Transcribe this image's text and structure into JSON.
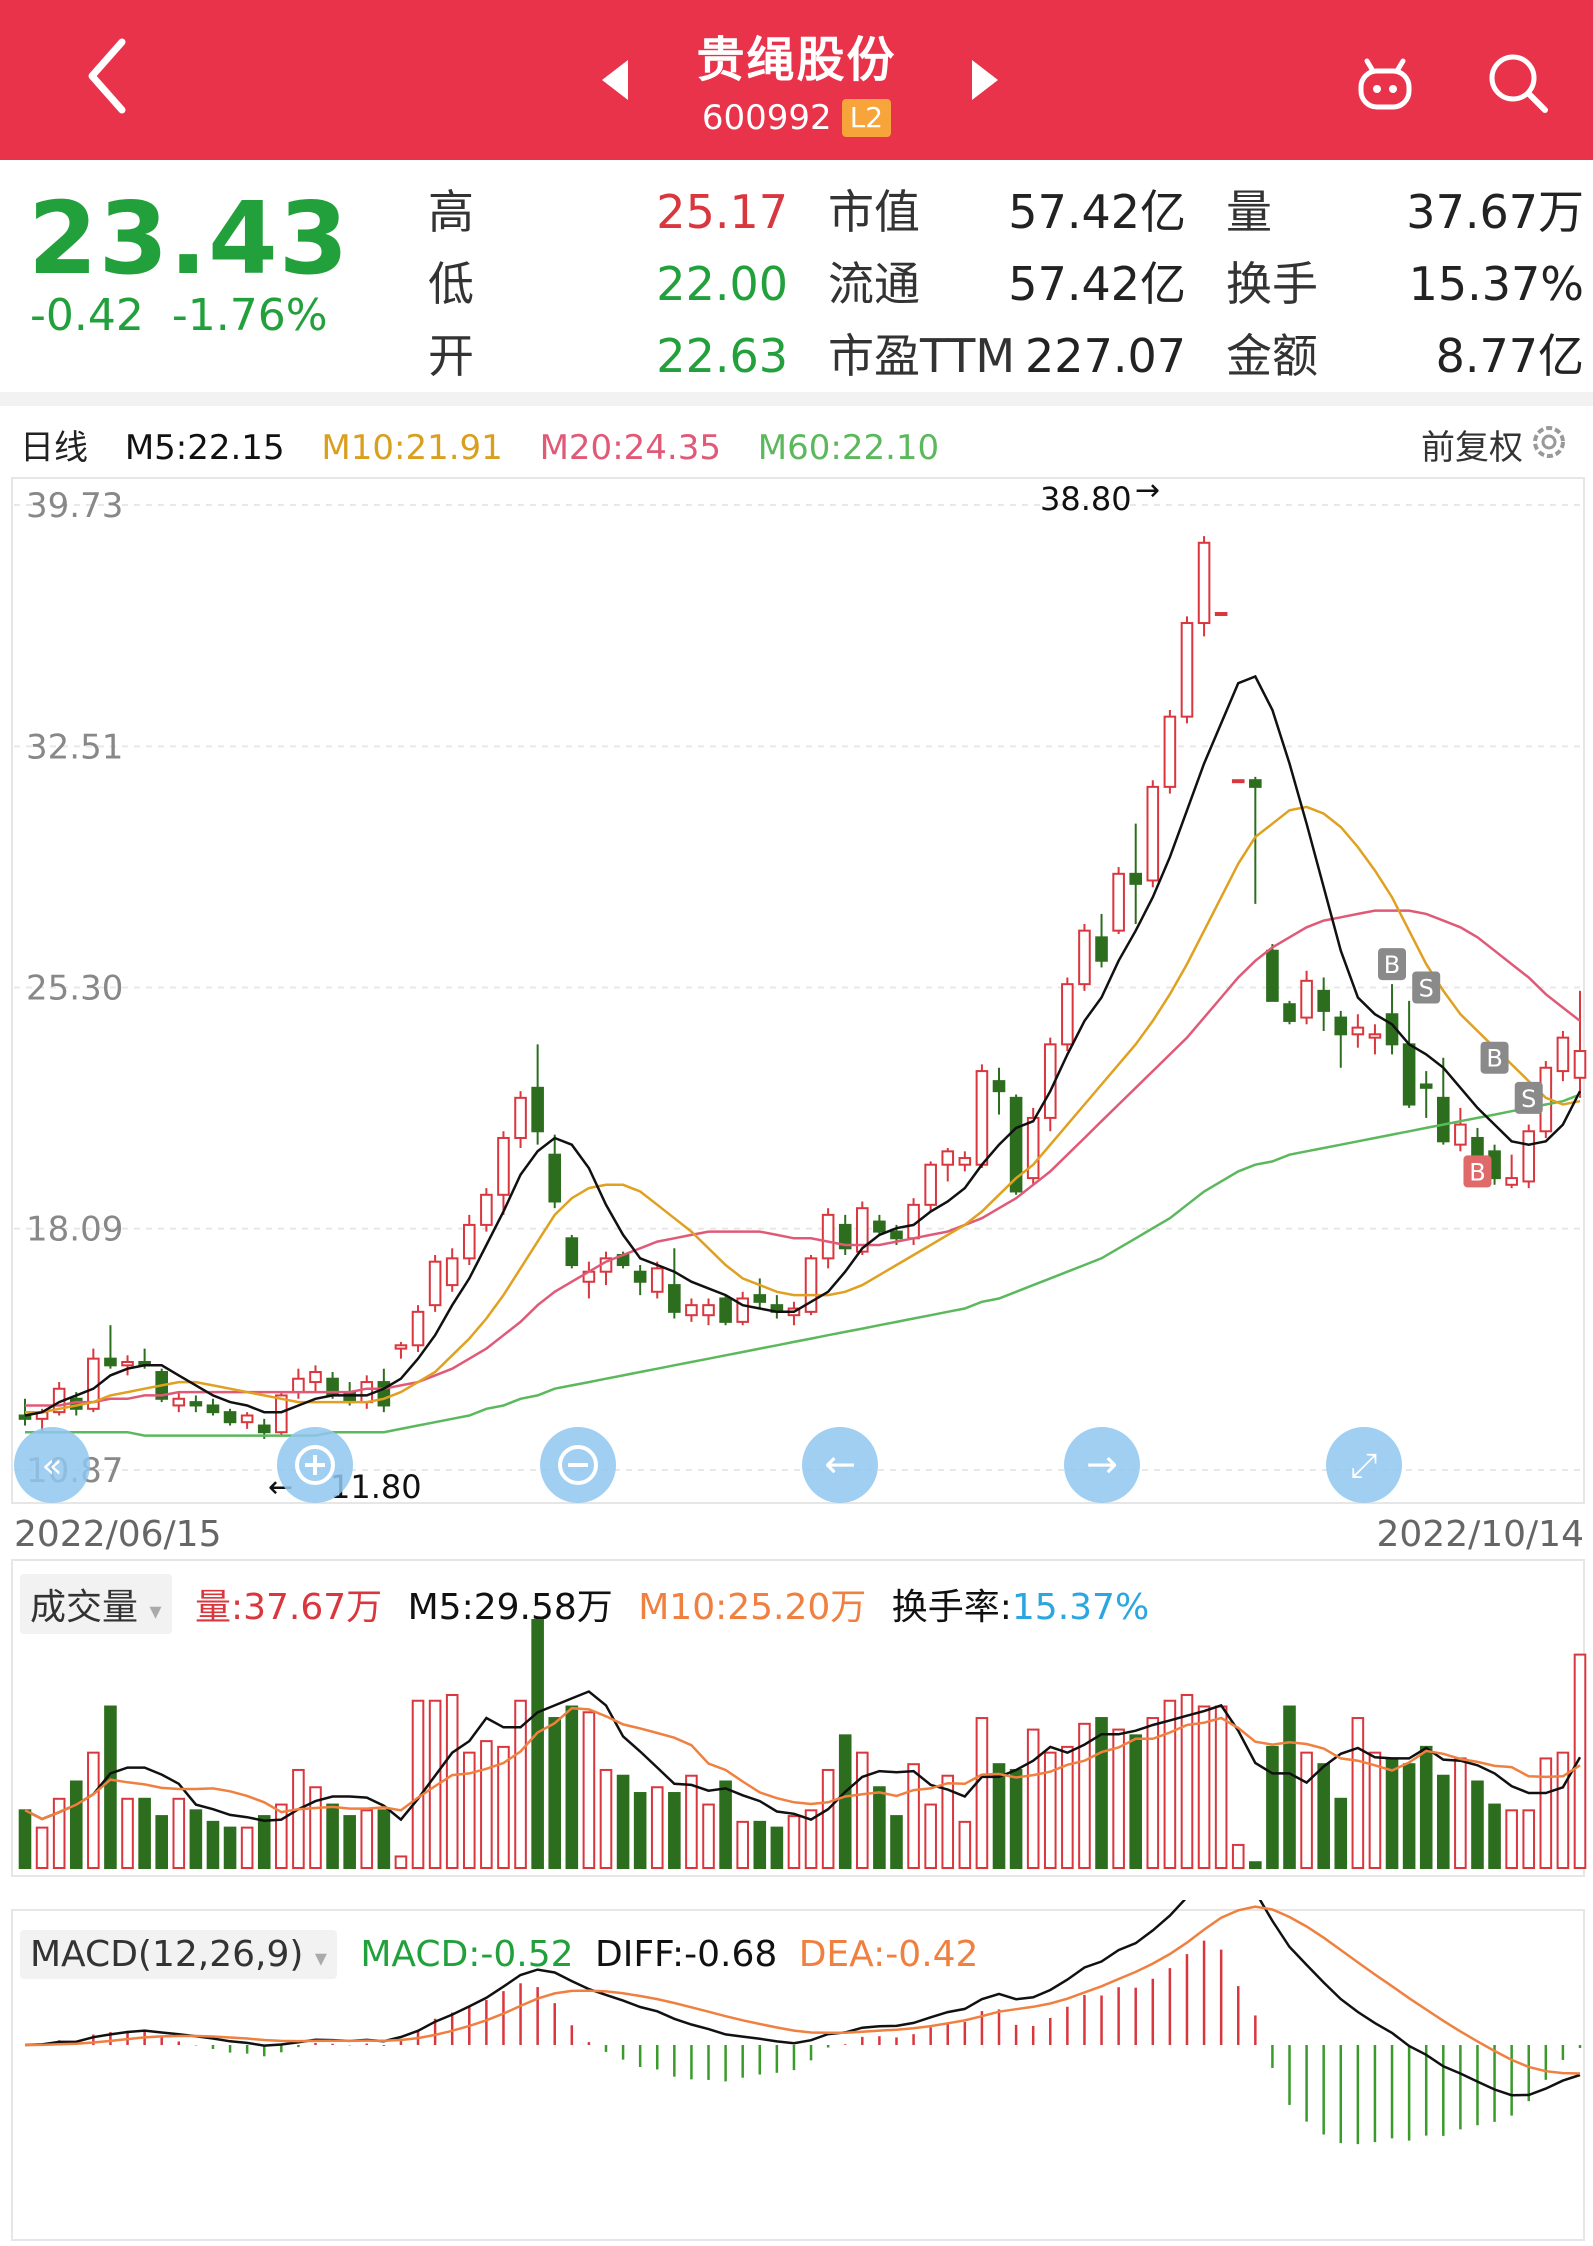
{
  "header": {
    "title": "贵绳股份",
    "code": "600992",
    "badge": "L2"
  },
  "quote": {
    "price": "23.43",
    "change": "-0.42",
    "change_pct": "-1.76%",
    "high_label": "高",
    "high": "25.17",
    "low_label": "低",
    "low": "22.00",
    "open_label": "开",
    "open": "22.63",
    "mktcap_label": "市值",
    "mktcap": "57.42亿",
    "float_label": "流通",
    "float": "57.42亿",
    "pe_label": "市盈TTM",
    "pe": "227.07",
    "vol_label": "量",
    "vol": "37.67万",
    "turnover_label": "换手",
    "turnover": "15.37%",
    "amount_label": "金额",
    "amount": "8.77亿"
  },
  "kline_legend": {
    "period": "日线",
    "m5": "M5:22.15",
    "m10": "M10:21.91",
    "m20": "M20:24.35",
    "m60": "M60:22.10",
    "adjust": "前复权"
  },
  "vol_legend": {
    "title": "成交量",
    "vol": "量:37.67万",
    "m5": "M5:29.58万",
    "m10": "M10:25.20万",
    "turnover_label": "换手率:",
    "turnover": "15.37%"
  },
  "macd_legend": {
    "title": "MACD(12,26,9)",
    "macd": "MACD:-0.52",
    "diff": "DIFF:-0.68",
    "dea": "DEA:-0.42"
  },
  "colors": {
    "up": "#d9363e",
    "down": "#2d6e1e",
    "m5": "#111111",
    "m10": "#e0a020",
    "m20": "#e05a78",
    "m60": "#5cb85c",
    "vol_m10": "#f08040",
    "header": "#e8334a"
  },
  "chart_data": {
    "type": "candlestick",
    "ylim": [
      10.87,
      39.73
    ],
    "y_ticks": [
      "39.73",
      "32.51",
      "25.30",
      "18.09",
      "10.87"
    ],
    "date_start": "2022/06/15",
    "date_end": "2022/10/14",
    "max_label": "38.80",
    "min_label": "11.80",
    "ohlc": [
      [
        12.5,
        13.0,
        12.2,
        12.4
      ],
      [
        12.4,
        12.7,
        12.0,
        12.6
      ],
      [
        12.6,
        13.5,
        12.5,
        13.3
      ],
      [
        13.0,
        13.2,
        12.5,
        12.7
      ],
      [
        12.7,
        14.5,
        12.6,
        14.2
      ],
      [
        14.2,
        15.2,
        13.9,
        14.0
      ],
      [
        14.0,
        14.3,
        13.7,
        14.1
      ],
      [
        14.1,
        14.5,
        13.9,
        14.0
      ],
      [
        13.8,
        13.9,
        12.9,
        13.0
      ],
      [
        12.8,
        13.2,
        12.6,
        13.0
      ],
      [
        12.9,
        13.1,
        12.6,
        12.8
      ],
      [
        12.8,
        13.0,
        12.5,
        12.6
      ],
      [
        12.6,
        12.7,
        12.2,
        12.3
      ],
      [
        12.3,
        12.6,
        12.1,
        12.5
      ],
      [
        12.2,
        12.4,
        11.8,
        12.0
      ],
      [
        12.0,
        13.2,
        11.9,
        13.1
      ],
      [
        13.2,
        13.9,
        13.0,
        13.6
      ],
      [
        13.5,
        14.0,
        13.2,
        13.8
      ],
      [
        13.6,
        13.8,
        13.0,
        13.1
      ],
      [
        13.2,
        13.5,
        12.8,
        12.9
      ],
      [
        12.9,
        13.7,
        12.7,
        13.5
      ],
      [
        13.5,
        13.9,
        12.6,
        12.8
      ],
      [
        14.5,
        14.7,
        14.2,
        14.6
      ],
      [
        14.6,
        15.8,
        14.4,
        15.6
      ],
      [
        15.8,
        17.3,
        15.6,
        17.1
      ],
      [
        16.4,
        17.5,
        16.2,
        17.2
      ],
      [
        17.2,
        18.5,
        17.0,
        18.2
      ],
      [
        18.2,
        19.3,
        18.0,
        19.1
      ],
      [
        19.1,
        21.0,
        18.5,
        20.8
      ],
      [
        20.8,
        22.2,
        20.5,
        22.0
      ],
      [
        22.3,
        23.6,
        20.6,
        21.0
      ],
      [
        20.3,
        20.9,
        18.7,
        18.9
      ],
      [
        17.8,
        17.9,
        16.9,
        17.0
      ],
      [
        16.5,
        17.1,
        16.0,
        16.8
      ],
      [
        16.8,
        17.4,
        16.4,
        17.2
      ],
      [
        17.3,
        17.4,
        16.9,
        17.0
      ],
      [
        16.8,
        17.0,
        16.1,
        16.5
      ],
      [
        16.2,
        17.1,
        16.0,
        16.9
      ],
      [
        16.4,
        17.5,
        15.4,
        15.6
      ],
      [
        15.5,
        16.0,
        15.3,
        15.8
      ],
      [
        15.5,
        16.0,
        15.2,
        15.8
      ],
      [
        16.0,
        16.1,
        15.2,
        15.3
      ],
      [
        15.3,
        16.2,
        15.2,
        16.0
      ],
      [
        16.1,
        16.6,
        15.7,
        15.9
      ],
      [
        15.8,
        16.1,
        15.4,
        15.6
      ],
      [
        15.5,
        15.9,
        15.2,
        15.7
      ],
      [
        15.6,
        17.3,
        15.5,
        17.2
      ],
      [
        17.2,
        18.7,
        16.9,
        18.5
      ],
      [
        18.2,
        18.5,
        17.3,
        17.5
      ],
      [
        17.4,
        18.9,
        17.3,
        18.7
      ],
      [
        18.3,
        18.5,
        17.9,
        18.0
      ],
      [
        18.0,
        18.2,
        17.6,
        17.8
      ],
      [
        17.8,
        19.0,
        17.6,
        18.8
      ],
      [
        18.8,
        20.1,
        18.6,
        20.0
      ],
      [
        20.0,
        20.5,
        19.5,
        20.4
      ],
      [
        20.0,
        20.4,
        19.8,
        20.2
      ],
      [
        20.0,
        23.0,
        19.9,
        22.8
      ],
      [
        22.5,
        22.9,
        21.5,
        22.2
      ],
      [
        22.0,
        22.1,
        19.1,
        19.2
      ],
      [
        19.6,
        21.7,
        19.4,
        21.4
      ],
      [
        21.4,
        23.8,
        21.0,
        23.6
      ],
      [
        23.6,
        25.6,
        23.4,
        25.4
      ],
      [
        25.4,
        27.2,
        25.2,
        27.0
      ],
      [
        26.8,
        27.5,
        25.9,
        26.1
      ],
      [
        27.0,
        28.9,
        26.9,
        28.7
      ],
      [
        28.7,
        30.2,
        27.2,
        28.4
      ],
      [
        28.5,
        31.5,
        28.3,
        31.3
      ],
      [
        31.3,
        33.6,
        31.1,
        33.4
      ],
      [
        33.4,
        36.4,
        33.2,
        36.2
      ],
      [
        36.2,
        38.8,
        35.8,
        38.6
      ],
      [
        36.5,
        36.5,
        36.5,
        36.5
      ],
      [
        31.5,
        31.5,
        31.5,
        31.5
      ],
      [
        31.5,
        31.6,
        27.8,
        31.3
      ],
      [
        26.4,
        26.6,
        24.9,
        24.9
      ],
      [
        24.8,
        24.9,
        24.2,
        24.3
      ],
      [
        24.4,
        25.8,
        24.2,
        25.5
      ],
      [
        25.2,
        25.6,
        24.0,
        24.6
      ],
      [
        24.4,
        24.6,
        22.9,
        23.9
      ],
      [
        23.9,
        24.5,
        23.5,
        24.1
      ],
      [
        23.8,
        24.2,
        23.3,
        23.9
      ],
      [
        24.5,
        25.4,
        23.3,
        23.6
      ],
      [
        23.6,
        24.9,
        21.7,
        21.8
      ],
      [
        22.4,
        22.8,
        21.4,
        22.3
      ],
      [
        22.0,
        23.2,
        20.6,
        20.7
      ],
      [
        20.6,
        21.7,
        20.4,
        21.2
      ],
      [
        20.8,
        21.1,
        19.5,
        20.3
      ],
      [
        20.4,
        20.6,
        19.4,
        19.6
      ],
      [
        19.4,
        20.3,
        19.3,
        19.6
      ],
      [
        19.5,
        21.2,
        19.3,
        21.0
      ],
      [
        21.0,
        23.1,
        20.8,
        22.9
      ],
      [
        22.8,
        24.0,
        22.5,
        23.8
      ],
      [
        22.6,
        25.2,
        22.0,
        23.4
      ]
    ],
    "ma5": [
      12.5,
      12.6,
      12.9,
      13.1,
      13.3,
      13.7,
      13.9,
      14.0,
      14.0,
      13.7,
      13.4,
      13.1,
      12.9,
      12.8,
      12.6,
      12.6,
      12.8,
      13.0,
      13.1,
      13.1,
      13.1,
      13.3,
      13.6,
      14.2,
      14.9,
      15.8,
      16.6,
      17.6,
      18.6,
      19.7,
      20.4,
      20.8,
      20.6,
      19.9,
      18.8,
      17.9,
      17.2,
      17.0,
      16.8,
      16.5,
      16.3,
      16.1,
      15.8,
      15.7,
      15.6,
      15.6,
      15.9,
      16.2,
      16.8,
      17.5,
      17.9,
      18.1,
      18.2,
      18.6,
      18.9,
      19.3,
      20.0,
      20.6,
      21.1,
      21.3,
      22.2,
      23.3,
      24.3,
      25.0,
      26.1,
      27.0,
      28.0,
      29.2,
      30.6,
      32.0,
      33.2,
      34.4,
      34.6,
      33.6,
      32.0,
      30.2,
      28.3,
      26.4,
      25.0,
      24.5,
      24.2,
      23.6,
      23.3,
      22.9,
      22.3,
      21.7,
      21.2,
      20.7,
      20.6,
      20.7,
      21.2,
      22.2
    ],
    "ma10": [
      12.6,
      12.6,
      12.7,
      12.8,
      12.9,
      13.1,
      13.2,
      13.3,
      13.4,
      13.5,
      13.5,
      13.4,
      13.3,
      13.2,
      13.1,
      13.0,
      12.9,
      12.9,
      12.9,
      12.9,
      12.9,
      13.0,
      13.2,
      13.5,
      13.8,
      14.3,
      14.8,
      15.4,
      16.1,
      16.9,
      17.7,
      18.5,
      19.0,
      19.3,
      19.4,
      19.4,
      19.2,
      18.8,
      18.4,
      18.0,
      17.5,
      17.0,
      16.6,
      16.4,
      16.2,
      16.1,
      16.1,
      16.1,
      16.2,
      16.4,
      16.7,
      17.0,
      17.3,
      17.6,
      17.9,
      18.2,
      18.6,
      19.1,
      19.6,
      20.0,
      20.6,
      21.2,
      21.8,
      22.4,
      23.0,
      23.6,
      24.3,
      25.1,
      26.0,
      27.0,
      28.0,
      29.0,
      29.8,
      30.2,
      30.6,
      30.7,
      30.5,
      30.1,
      29.5,
      28.8,
      28.0,
      27.0,
      26.0,
      25.2,
      24.5,
      24.0,
      23.5,
      23.0,
      22.5,
      22.0,
      21.8,
      21.9
    ],
    "ma20": [
      12.8,
      12.8,
      12.8,
      12.9,
      12.9,
      13.0,
      13.0,
      13.1,
      13.1,
      13.2,
      13.2,
      13.2,
      13.2,
      13.2,
      13.2,
      13.2,
      13.2,
      13.2,
      13.2,
      13.2,
      13.3,
      13.3,
      13.4,
      13.5,
      13.7,
      13.9,
      14.2,
      14.5,
      14.9,
      15.3,
      15.8,
      16.2,
      16.5,
      16.8,
      17.1,
      17.3,
      17.5,
      17.7,
      17.8,
      17.9,
      18.0,
      18.0,
      18.0,
      18.0,
      17.9,
      17.8,
      17.8,
      17.7,
      17.6,
      17.6,
      17.6,
      17.7,
      17.8,
      17.9,
      18.0,
      18.2,
      18.4,
      18.7,
      19.0,
      19.4,
      19.8,
      20.3,
      20.8,
      21.3,
      21.8,
      22.3,
      22.8,
      23.3,
      23.8,
      24.4,
      25.0,
      25.6,
      26.1,
      26.5,
      26.8,
      27.1,
      27.3,
      27.4,
      27.5,
      27.6,
      27.6,
      27.6,
      27.5,
      27.3,
      27.1,
      26.8,
      26.4,
      26.0,
      25.6,
      25.1,
      24.7,
      24.3
    ],
    "ma60": [
      12.0,
      12.0,
      12.0,
      12.0,
      12.0,
      12.0,
      12.0,
      11.9,
      11.9,
      11.9,
      11.9,
      11.9,
      11.9,
      11.9,
      11.9,
      11.9,
      11.9,
      11.9,
      12.0,
      12.0,
      12.0,
      12.0,
      12.1,
      12.2,
      12.3,
      12.4,
      12.5,
      12.7,
      12.8,
      13.0,
      13.1,
      13.3,
      13.4,
      13.5,
      13.6,
      13.7,
      13.8,
      13.9,
      14.0,
      14.1,
      14.2,
      14.3,
      14.4,
      14.5,
      14.6,
      14.7,
      14.8,
      14.9,
      15.0,
      15.1,
      15.2,
      15.3,
      15.4,
      15.5,
      15.6,
      15.7,
      15.9,
      16.0,
      16.2,
      16.4,
      16.6,
      16.8,
      17.0,
      17.2,
      17.5,
      17.8,
      18.1,
      18.4,
      18.8,
      19.2,
      19.5,
      19.8,
      20.0,
      20.1,
      20.3,
      20.4,
      20.5,
      20.6,
      20.7,
      20.8,
      20.9,
      21.0,
      21.1,
      21.2,
      21.3,
      21.4,
      21.5,
      21.6,
      21.7,
      21.8,
      21.9,
      22.1
    ],
    "markers": [
      {
        "i": 80,
        "label": "B",
        "price": 26.0
      },
      {
        "i": 82,
        "label": "S",
        "price": 25.3
      },
      {
        "i": 86,
        "label": "B",
        "price": 23.2
      },
      {
        "i": 88,
        "label": "S",
        "price": 22.0
      },
      {
        "i": 85,
        "label": "B",
        "price": 19.8
      }
    ],
    "volume": [
      10,
      7,
      12,
      15,
      20,
      28,
      12,
      12,
      9,
      12,
      10,
      8,
      7,
      7,
      9,
      11,
      17,
      14,
      11,
      9,
      10,
      10,
      2,
      29,
      29,
      30,
      20,
      22,
      21,
      29,
      43,
      26,
      28,
      27,
      17,
      16,
      13,
      14,
      13,
      16,
      11,
      15,
      8,
      8,
      7,
      9,
      10,
      17,
      23,
      20,
      14,
      9,
      18,
      11,
      16,
      8,
      26,
      18,
      17,
      24,
      20,
      21,
      25,
      26,
      24,
      23,
      26,
      29,
      30,
      28,
      28,
      4,
      1,
      21,
      28,
      20,
      18,
      12,
      26,
      20,
      19,
      18,
      21,
      16,
      19,
      15,
      11,
      10,
      10,
      19,
      20,
      37
    ]
  }
}
